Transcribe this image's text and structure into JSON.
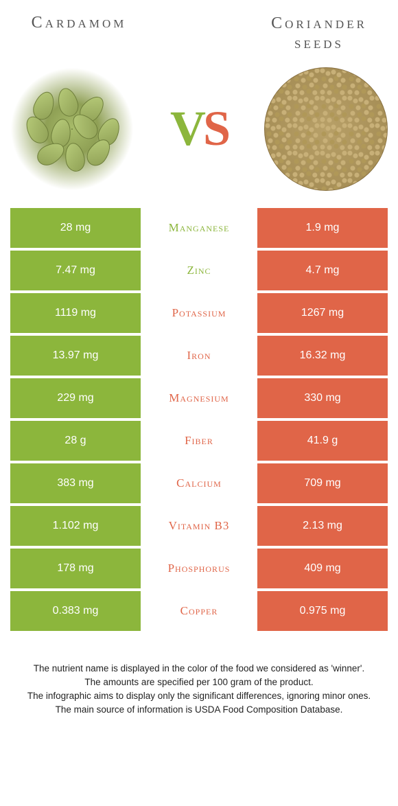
{
  "colors": {
    "left": "#8cb63c",
    "right": "#e06548",
    "background": "#ffffff",
    "title_text": "#555555",
    "footer_text": "#222222"
  },
  "header": {
    "left_title": "Cardamom",
    "right_title": "Coriander seeds",
    "vs_v": "V",
    "vs_s": "S"
  },
  "rows": [
    {
      "nutrient": "Manganese",
      "left": "28 mg",
      "right": "1.9 mg",
      "winner": "left"
    },
    {
      "nutrient": "Zinc",
      "left": "7.47 mg",
      "right": "4.7 mg",
      "winner": "left"
    },
    {
      "nutrient": "Potassium",
      "left": "1119 mg",
      "right": "1267 mg",
      "winner": "right"
    },
    {
      "nutrient": "Iron",
      "left": "13.97 mg",
      "right": "16.32 mg",
      "winner": "right"
    },
    {
      "nutrient": "Magnesium",
      "left": "229 mg",
      "right": "330 mg",
      "winner": "right"
    },
    {
      "nutrient": "Fiber",
      "left": "28 g",
      "right": "41.9 g",
      "winner": "right"
    },
    {
      "nutrient": "Calcium",
      "left": "383 mg",
      "right": "709 mg",
      "winner": "right"
    },
    {
      "nutrient": "Vitamin B3",
      "left": "1.102 mg",
      "right": "2.13 mg",
      "winner": "right"
    },
    {
      "nutrient": "Phosphorus",
      "left": "178 mg",
      "right": "409 mg",
      "winner": "right"
    },
    {
      "nutrient": "Copper",
      "left": "0.383 mg",
      "right": "0.975 mg",
      "winner": "right"
    }
  ],
  "footer": {
    "line1": "The nutrient name is displayed in the color of the food we considered as 'winner'.",
    "line2": "The amounts are specified per 100 gram of the product.",
    "line3": "The infographic aims to display only the significant differences, ignoring minor ones.",
    "line4": "The main source of information is USDA Food Composition Database."
  }
}
